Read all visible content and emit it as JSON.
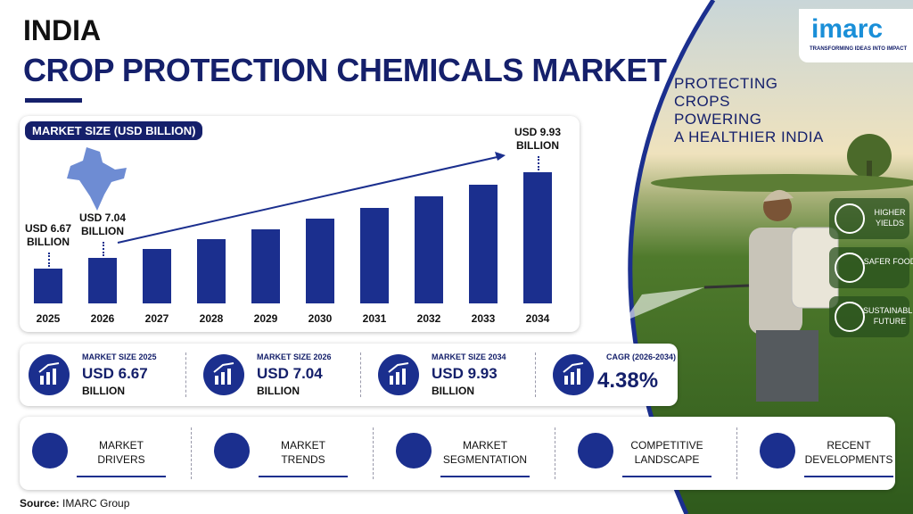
{
  "header": {
    "country": "INDIA",
    "title": "CROP PROTECTION CHEMICALS MARKET"
  },
  "logo": {
    "name": "imarc",
    "tagline": "TRANSFORMING IDEAS INTO IMPACT"
  },
  "chart_data": {
    "type": "bar",
    "title": "MARKET SIZE (USD BILLION)",
    "categories": [
      "2025",
      "2026",
      "2027",
      "2028",
      "2029",
      "2030",
      "2031",
      "2032",
      "2033",
      "2034"
    ],
    "values": [
      6.67,
      7.04,
      7.35,
      7.67,
      8.01,
      8.36,
      8.72,
      9.1,
      9.5,
      9.93
    ],
    "value_labels": [
      "USD 6.67 BILLION",
      "USD 7.04 BILLION",
      null,
      null,
      null,
      null,
      null,
      null,
      null,
      "USD 9.93 BILLION"
    ],
    "color": "#1b2f8e",
    "ylim": [
      5.5,
      10.5
    ]
  },
  "tagline": [
    "PROTECTING",
    "CROPS",
    "POWERING",
    "A HEALTHIER INDIA"
  ],
  "benefits": [
    "HIGHER YIELDS",
    "SAFER FOOD",
    "SUSTAINABLE FUTURE"
  ],
  "stats": [
    {
      "label": "MARKET SIZE 2025",
      "value": "USD 6.67",
      "unit": "BILLION"
    },
    {
      "label": "MARKET SIZE 2026",
      "value": "USD 7.04",
      "unit": "BILLION"
    },
    {
      "label": "MARKET SIZE 2034",
      "value": "USD 9.93",
      "unit": "BILLION"
    },
    {
      "label": "CAGR (2026-2034)",
      "value": "4.38%"
    }
  ],
  "topics": [
    "MARKET DRIVERS",
    "MARKET TRENDS",
    "MARKET SEGMENTATION",
    "COMPETITIVE LANDSCAPE",
    "RECENT DEVELOPMENTS"
  ],
  "source": {
    "label": "Source:",
    "text": "IMARC Group"
  }
}
